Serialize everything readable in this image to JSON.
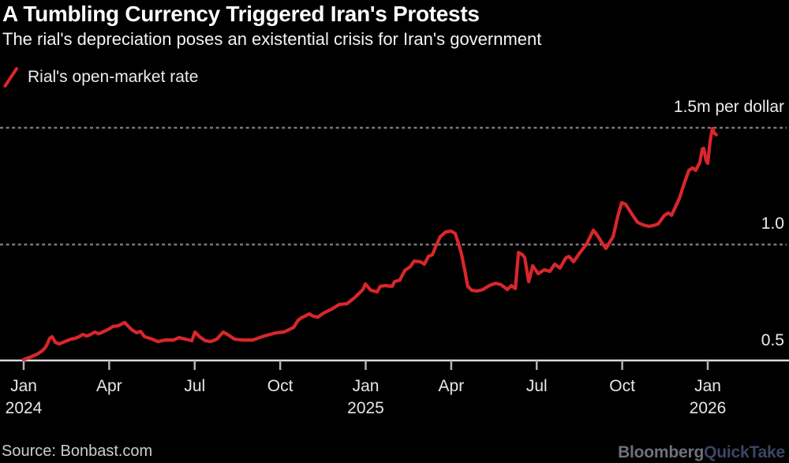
{
  "header": {
    "title": "A Tumbling Currency Triggered Iran's Protests",
    "subtitle": "The rial's depreciation poses an existential crisis for Iran's government"
  },
  "legend": {
    "label": "Rial's open-market rate",
    "swatch_color": "#d9262c"
  },
  "footer": {
    "source": "Source: Bonbast.com",
    "brand": {
      "bloomberg": "Bloomberg",
      "quicktake": "QuickTake"
    }
  },
  "colors": {
    "background": "#000000",
    "title_text": "#ffffff",
    "axis_text": "#e6e6e6",
    "line_red": "#d9262c",
    "gridline_dots": "#787878",
    "baseline": "#d9d9d9",
    "tick": "#b3b3b3",
    "source_text": "#cdcdcd",
    "brand_bloomberg": "#6e727c",
    "brand_quicktake": "#3b4663"
  },
  "chart_data": {
    "type": "line",
    "title": "A Tumbling Currency Triggered Iran's Protests",
    "subtitle": "The rial's depreciation poses an existential crisis for Iran's government",
    "unit": "million rials per U.S. dollar",
    "grid": "horizontal-dotted",
    "legend_position": "top-left",
    "x_axis": {
      "note": "months since Jan 2024",
      "ticks": [
        {
          "label": "Jan",
          "sublabel": "2024",
          "month": 0
        },
        {
          "label": "Apr",
          "sublabel": "",
          "month": 3
        },
        {
          "label": "Jul",
          "sublabel": "",
          "month": 6
        },
        {
          "label": "Oct",
          "sublabel": "",
          "month": 9
        },
        {
          "label": "Jan",
          "sublabel": "2025",
          "month": 12
        },
        {
          "label": "Apr",
          "sublabel": "",
          "month": 15
        },
        {
          "label": "Jul",
          "sublabel": "",
          "month": 18
        },
        {
          "label": "Oct",
          "sublabel": "",
          "month": 21
        },
        {
          "label": "Jan",
          "sublabel": "2026",
          "month": 24
        }
      ]
    },
    "y_axis": {
      "ylim": [
        0.5,
        1.55
      ],
      "labels": [
        {
          "text": "1.5m per dollar",
          "value": 1.5
        },
        {
          "text": "1.0",
          "value": 1.0
        },
        {
          "text": "0.5",
          "value": 0.5
        }
      ],
      "gridlines": [
        1.0,
        1.5
      ],
      "baseline_value": 0.5
    },
    "series": [
      {
        "name": "Rial's open-market rate",
        "color": "#d9262c",
        "points": [
          [
            0,
            0.507
          ],
          [
            0.28,
            0.52
          ],
          [
            0.47,
            0.53
          ],
          [
            0.64,
            0.544
          ],
          [
            0.75,
            0.557
          ],
          [
            0.83,
            0.574
          ],
          [
            0.91,
            0.598
          ],
          [
            1,
            0.605
          ],
          [
            1.11,
            0.581
          ],
          [
            1.25,
            0.574
          ],
          [
            1.38,
            0.581
          ],
          [
            1.52,
            0.588
          ],
          [
            1.66,
            0.595
          ],
          [
            1.8,
            0.598
          ],
          [
            1.94,
            0.605
          ],
          [
            2.08,
            0.615
          ],
          [
            2.21,
            0.608
          ],
          [
            2.35,
            0.615
          ],
          [
            2.49,
            0.625
          ],
          [
            2.63,
            0.618
          ],
          [
            2.77,
            0.625
          ],
          [
            2.99,
            0.638
          ],
          [
            3.13,
            0.649
          ],
          [
            3.32,
            0.652
          ],
          [
            3.54,
            0.666
          ],
          [
            3.79,
            0.635
          ],
          [
            3.96,
            0.622
          ],
          [
            4.1,
            0.628
          ],
          [
            4.24,
            0.605
          ],
          [
            4.51,
            0.595
          ],
          [
            4.71,
            0.584
          ],
          [
            4.98,
            0.591
          ],
          [
            5.26,
            0.591
          ],
          [
            5.45,
            0.601
          ],
          [
            5.67,
            0.595
          ],
          [
            5.9,
            0.588
          ],
          [
            6.01,
            0.625
          ],
          [
            6.17,
            0.605
          ],
          [
            6.37,
            0.588
          ],
          [
            6.56,
            0.584
          ],
          [
            6.78,
            0.595
          ],
          [
            7,
            0.625
          ],
          [
            7.2,
            0.611
          ],
          [
            7.39,
            0.595
          ],
          [
            7.67,
            0.591
          ],
          [
            8.03,
            0.591
          ],
          [
            8.44,
            0.608
          ],
          [
            8.86,
            0.622
          ],
          [
            9.13,
            0.625
          ],
          [
            9.47,
            0.645
          ],
          [
            9.63,
            0.676
          ],
          [
            9.74,
            0.686
          ],
          [
            9.91,
            0.696
          ],
          [
            10.02,
            0.703
          ],
          [
            10.16,
            0.693
          ],
          [
            10.32,
            0.689
          ],
          [
            10.52,
            0.706
          ],
          [
            10.8,
            0.723
          ],
          [
            11.07,
            0.743
          ],
          [
            11.35,
            0.747
          ],
          [
            11.63,
            0.774
          ],
          [
            11.9,
            0.807
          ],
          [
            11.99,
            0.831
          ],
          [
            12.18,
            0.804
          ],
          [
            12.4,
            0.797
          ],
          [
            12.51,
            0.821
          ],
          [
            12.68,
            0.824
          ],
          [
            12.93,
            0.821
          ],
          [
            13.01,
            0.841
          ],
          [
            13.2,
            0.848
          ],
          [
            13.37,
            0.889
          ],
          [
            13.56,
            0.905
          ],
          [
            13.7,
            0.929
          ],
          [
            13.92,
            0.926
          ],
          [
            14.06,
            0.916
          ],
          [
            14.2,
            0.949
          ],
          [
            14.34,
            0.956
          ],
          [
            14.45,
            0.99
          ],
          [
            14.62,
            1.034
          ],
          [
            14.81,
            1.054
          ],
          [
            15,
            1.057
          ],
          [
            15.14,
            1.047
          ],
          [
            15.25,
            1.007
          ],
          [
            15.36,
            0.959
          ],
          [
            15.5,
            0.875
          ],
          [
            15.58,
            0.821
          ],
          [
            15.72,
            0.804
          ],
          [
            15.92,
            0.801
          ],
          [
            16.11,
            0.807
          ],
          [
            16.33,
            0.824
          ],
          [
            16.55,
            0.834
          ],
          [
            16.75,
            0.828
          ],
          [
            16.97,
            0.807
          ],
          [
            17.11,
            0.824
          ],
          [
            17.25,
            0.811
          ],
          [
            17.36,
            0.966
          ],
          [
            17.5,
            0.956
          ],
          [
            17.58,
            0.943
          ],
          [
            17.72,
            0.841
          ],
          [
            17.86,
            0.909
          ],
          [
            18.05,
            0.875
          ],
          [
            18.27,
            0.892
          ],
          [
            18.46,
            0.885
          ],
          [
            18.63,
            0.916
          ],
          [
            18.82,
            0.899
          ],
          [
            19.02,
            0.943
          ],
          [
            19.13,
            0.949
          ],
          [
            19.29,
            0.926
          ],
          [
            19.52,
            0.966
          ],
          [
            19.74,
            1.0
          ],
          [
            19.99,
            1.061
          ],
          [
            20.12,
            1.041
          ],
          [
            20.29,
            1.007
          ],
          [
            20.43,
            0.983
          ],
          [
            20.68,
            1.034
          ],
          [
            20.84,
            1.118
          ],
          [
            20.98,
            1.179
          ],
          [
            21.12,
            1.172
          ],
          [
            21.37,
            1.125
          ],
          [
            21.54,
            1.095
          ],
          [
            21.73,
            1.084
          ],
          [
            21.92,
            1.078
          ],
          [
            22.09,
            1.081
          ],
          [
            22.26,
            1.088
          ],
          [
            22.48,
            1.125
          ],
          [
            22.62,
            1.135
          ],
          [
            22.73,
            1.125
          ],
          [
            22.87,
            1.162
          ],
          [
            23,
            1.196
          ],
          [
            23.17,
            1.26
          ],
          [
            23.34,
            1.318
          ],
          [
            23.47,
            1.328
          ],
          [
            23.58,
            1.318
          ],
          [
            23.72,
            1.351
          ],
          [
            23.81,
            1.409
          ],
          [
            23.86,
            1.412
          ],
          [
            23.94,
            1.361
          ],
          [
            24,
            1.348
          ],
          [
            24.08,
            1.439
          ],
          [
            24.14,
            1.483
          ],
          [
            24.17,
            1.497
          ],
          [
            24.22,
            1.48
          ],
          [
            24.3,
            1.47
          ]
        ]
      }
    ]
  }
}
